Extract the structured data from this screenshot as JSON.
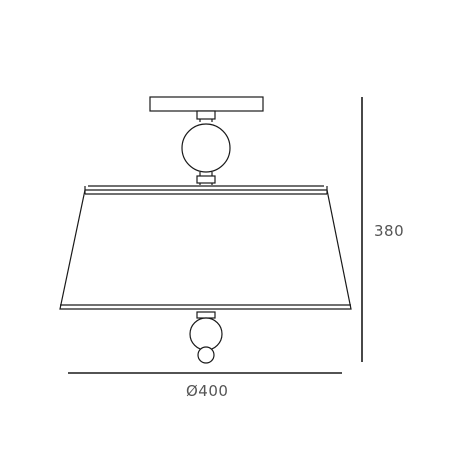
{
  "dimensions": {
    "height": "380",
    "diameter": "Ø400"
  },
  "colors": {
    "line": "#1a1a1a",
    "label": "#555555",
    "background": "#ffffff"
  }
}
